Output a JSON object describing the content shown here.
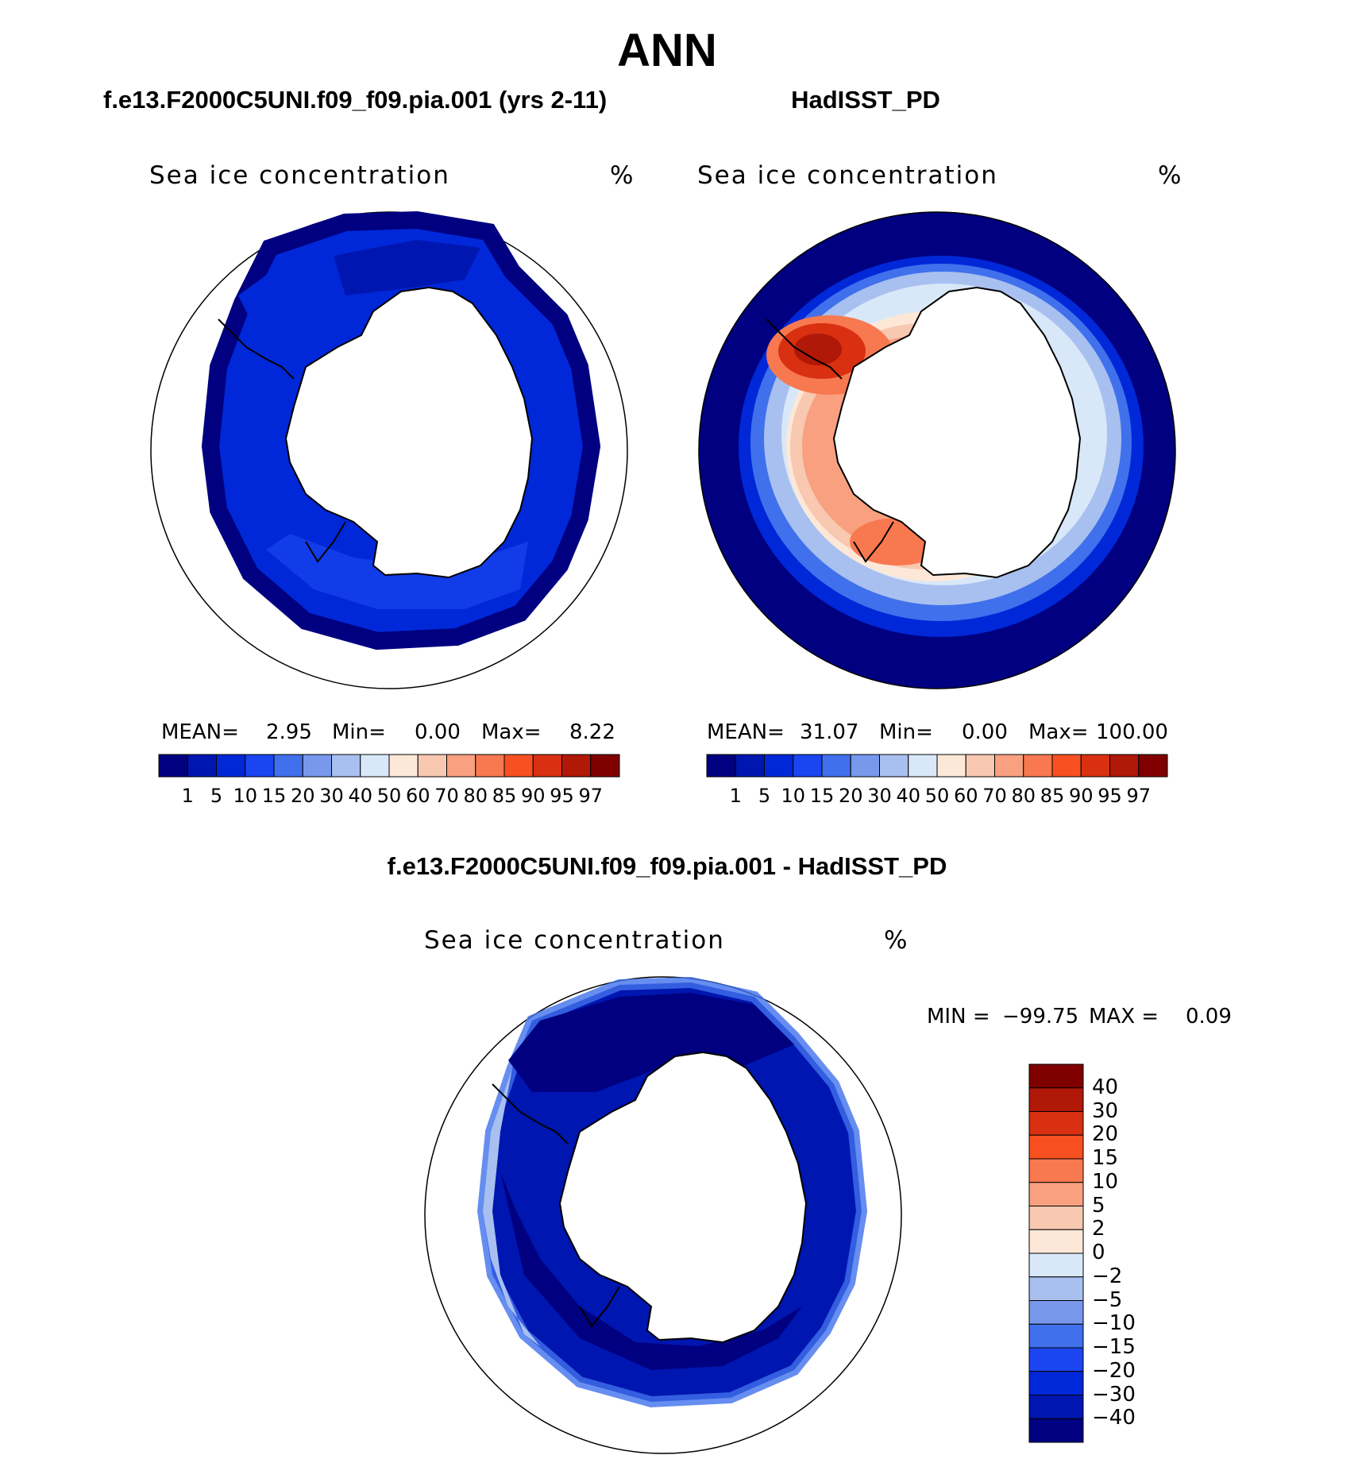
{
  "title": "ANN",
  "panels": [
    {
      "title": "f.e13.F2000C5UNI.f09_f09.pia.001 (yrs 2-11)",
      "variable": "Sea ice concentration",
      "unit": "%",
      "mean_label": "MEAN=",
      "mean": "2.95",
      "min_label": "Min=",
      "min": "0.00",
      "max_label": "Max=",
      "max": "8.22"
    },
    {
      "title": "HadISST_PD",
      "variable": "Sea ice concentration",
      "unit": "%",
      "mean_label": "MEAN=",
      "mean": "31.07",
      "min_label": "Min=",
      "min": "0.00",
      "max_label": "Max=",
      "max": "100.00"
    }
  ],
  "abs_colorbar": {
    "colors": [
      "#000080",
      "#0016b0",
      "#0028d8",
      "#1a45f0",
      "#4070ec",
      "#7898ec",
      "#a8c0f0",
      "#d8e8f8",
      "#fde8d8",
      "#f8c8b0",
      "#f8a080",
      "#f87850",
      "#f85020",
      "#d83010",
      "#b01808",
      "#800000"
    ],
    "labels": [
      "1",
      "5",
      "10",
      "15",
      "20",
      "30",
      "40",
      "50",
      "60",
      "70",
      "80",
      "85",
      "90",
      "95",
      "97"
    ]
  },
  "diff_panel": {
    "title": "f.e13.F2000C5UNI.f09_f09.pia.001 - HadISST_PD",
    "variable": "Sea ice concentration",
    "unit": "%",
    "min_label": "MIN =",
    "min": "−99.75",
    "max_label": "MAX =",
    "max": "0.09"
  },
  "diff_colorbar": {
    "colors": [
      "#800000",
      "#b01808",
      "#d83010",
      "#f85020",
      "#f87850",
      "#f8a080",
      "#f8c8b0",
      "#fde8d8",
      "#d8e8f8",
      "#a8c0f0",
      "#7898ec",
      "#4070ec",
      "#1a45f0",
      "#0028d8",
      "#0016b0",
      "#000080"
    ],
    "labels": [
      "40",
      "30",
      "20",
      "15",
      "10",
      "5",
      "2",
      "0",
      "−2",
      "−5",
      "−10",
      "−15",
      "−20",
      "−30",
      "−40"
    ]
  }
}
